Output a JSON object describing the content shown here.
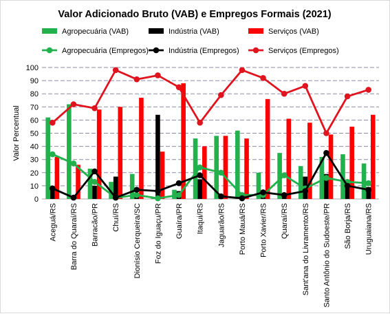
{
  "chart_data": {
    "type": "bar",
    "title": "Valor Adicionado Bruto (VAB) e Empregos Formais (2021)",
    "ylabel": "Valor Percentual",
    "ylim": [
      0,
      100
    ],
    "yticks": [
      0,
      10,
      20,
      30,
      40,
      50,
      60,
      70,
      80,
      90,
      100
    ],
    "grid": true,
    "legend_position": "top",
    "categories": [
      "Aceguá/RS",
      "Barra do Quaraí/RS",
      "Barracão/PR",
      "Chuí/RS",
      "Dionísio Cerqueira/SC",
      "Foz do Iguaçu/PR",
      "Guaíra/PR",
      "Itaqui/RS",
      "Jaguarão/RS",
      "Porto Mauá/RS",
      "Porto Xavier/RS",
      "Quaraí/RS",
      "Sant'ana do Livramento/RS",
      "Santo Antônio do Sudoeste/PR",
      "São Borja/RS",
      "Uruguaiana/RS"
    ],
    "bar_series": [
      {
        "name": "Agropecuária (VAB)",
        "color": "#22b14c",
        "values": [
          62,
          72,
          23,
          13,
          19,
          1,
          7,
          46,
          48,
          52,
          20,
          35,
          25,
          32,
          34,
          27
        ]
      },
      {
        "name": "Indústria (VAB)",
        "color": "#000000",
        "values": [
          7,
          2,
          10,
          17,
          4,
          64,
          6,
          15,
          3,
          2,
          4,
          4,
          17,
          19,
          11,
          9
        ]
      },
      {
        "name": "Serviços (VAB)",
        "color": "#ff0000",
        "values": [
          32,
          26,
          68,
          70,
          77,
          36,
          88,
          40,
          48,
          46,
          76,
          61,
          58,
          49,
          55,
          64
        ]
      }
    ],
    "line_series": [
      {
        "name": "Agropecuária (Empregos)",
        "color": "#22b14c",
        "values": [
          34,
          27,
          13,
          1,
          3,
          0.5,
          3,
          24,
          20,
          3,
          3,
          18,
          8,
          16,
          13,
          12
        ]
      },
      {
        "name": "Indústria  (Empregos)",
        "color": "#000000",
        "values": [
          8,
          1,
          21,
          1,
          7,
          6,
          12,
          18,
          2,
          0.5,
          5,
          3,
          6,
          35,
          10,
          7
        ]
      },
      {
        "name": "Serviços  (Empregos)",
        "color": "#e0141e",
        "values": [
          58,
          72,
          69,
          98,
          91,
          94,
          85,
          58,
          79,
          98,
          92,
          80,
          86,
          50,
          78,
          83
        ]
      }
    ]
  }
}
